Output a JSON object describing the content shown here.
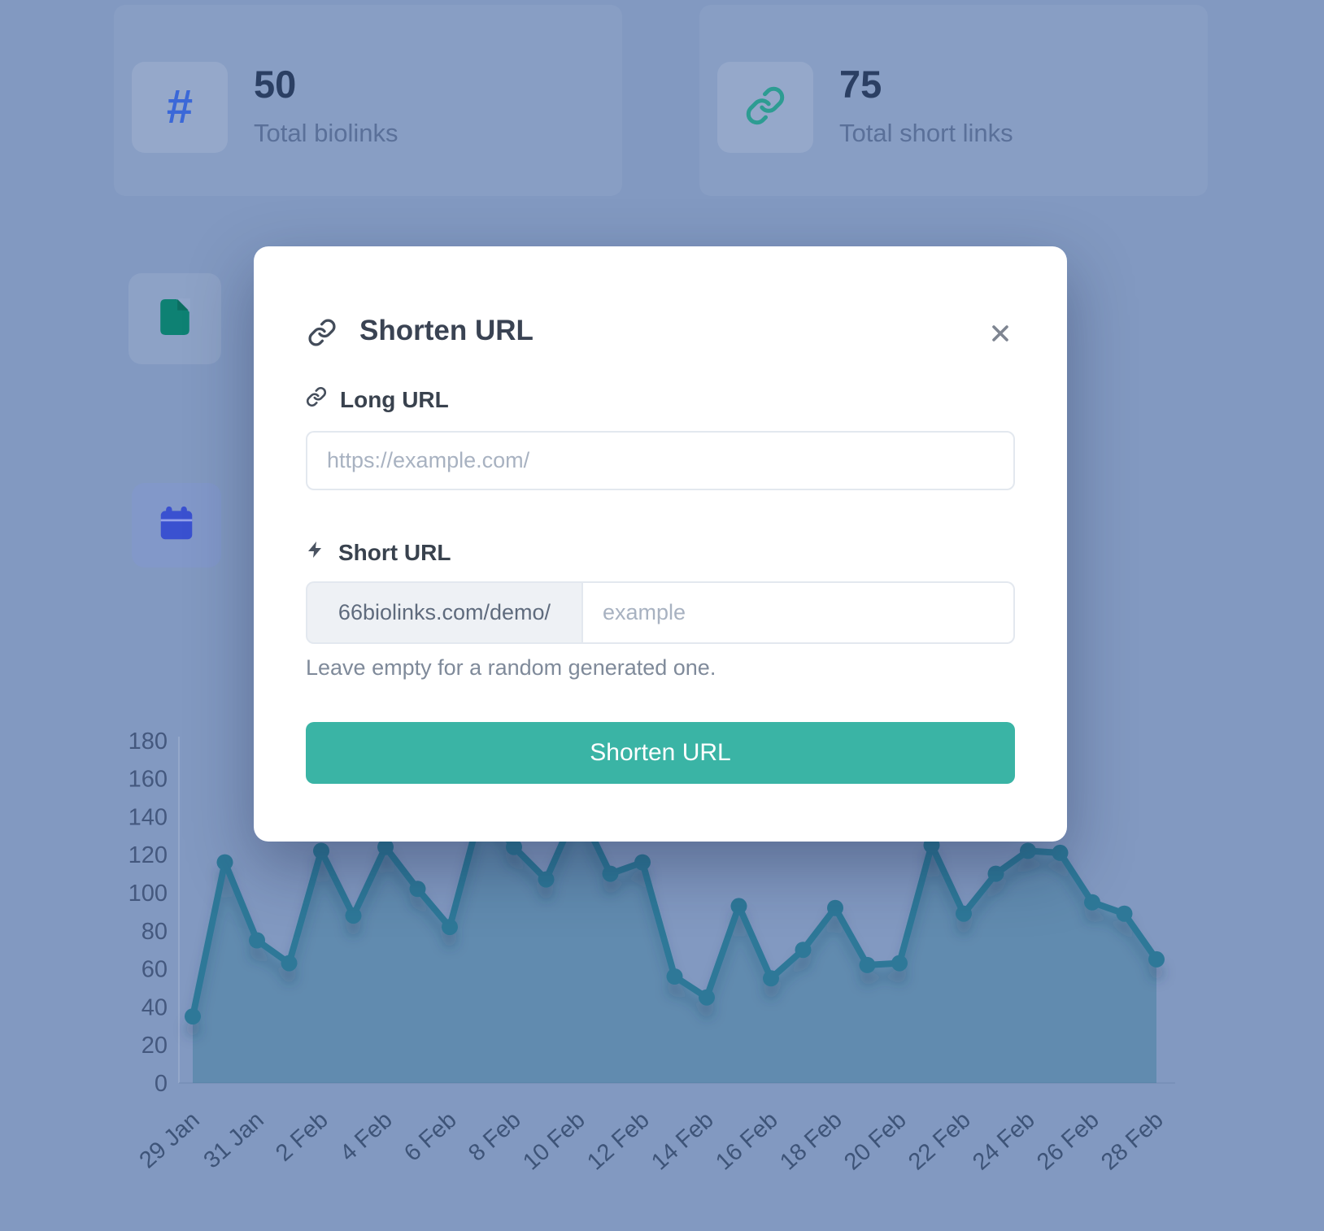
{
  "stats": [
    {
      "icon": "hash-icon",
      "icon_color": "#3b68d8",
      "value": "50",
      "label": "Total biolinks"
    },
    {
      "icon": "link-icon",
      "icon_color": "#2d9c92",
      "value": "75",
      "label": "Total short links"
    }
  ],
  "background_tiles": [
    {
      "icon": "file-icon",
      "color": "#0e8173"
    },
    {
      "icon": "calendar-icon",
      "color": "#3a51d0"
    }
  ],
  "modal": {
    "title": "Shorten URL",
    "long_url": {
      "label": "Long URL",
      "placeholder": "https://example.com/"
    },
    "short_url": {
      "label": "Short URL",
      "prefix": "66biolinks.com/demo/",
      "placeholder": "example",
      "helper": "Leave empty for a random generated one."
    },
    "submit_label": "Shorten URL",
    "accent_color": "#3ab4a5"
  },
  "chart_data": {
    "type": "line",
    "x_labels": [
      "29 Jan",
      "30 Jan",
      "31 Jan",
      "1 Feb",
      "2 Feb",
      "3 Feb",
      "4 Feb",
      "5 Feb",
      "6 Feb",
      "7 Feb",
      "8 Feb",
      "9 Feb",
      "10 Feb",
      "11 Feb",
      "12 Feb",
      "13 Feb",
      "14 Feb",
      "15 Feb",
      "16 Feb",
      "17 Feb",
      "18 Feb",
      "19 Feb",
      "20 Feb",
      "21 Feb",
      "22 Feb",
      "23 Feb",
      "24 Feb",
      "25 Feb",
      "26 Feb",
      "27 Feb",
      "28 Feb"
    ],
    "values": [
      35,
      116,
      75,
      63,
      122,
      88,
      124,
      102,
      82,
      145,
      124,
      107,
      145,
      110,
      116,
      56,
      45,
      93,
      55,
      70,
      92,
      62,
      63,
      125,
      89,
      110,
      122,
      121,
      95,
      89,
      65
    ],
    "occluded_point_indices": [
      9,
      12
    ],
    "tick_labels": [
      "29 Jan",
      "31 Jan",
      "2 Feb",
      "4 Feb",
      "6 Feb",
      "8 Feb",
      "10 Feb",
      "12 Feb",
      "14 Feb",
      "16 Feb",
      "18 Feb",
      "20 Feb",
      "22 Feb",
      "24 Feb",
      "26 Feb",
      "28 Feb"
    ],
    "ylim": [
      0,
      180
    ],
    "ytick_step": 20,
    "xlabel": "",
    "ylabel": "",
    "grid": false,
    "legend": false,
    "series_color": "#2e7898",
    "fill_color": "rgba(44,116,148,0.38)"
  }
}
